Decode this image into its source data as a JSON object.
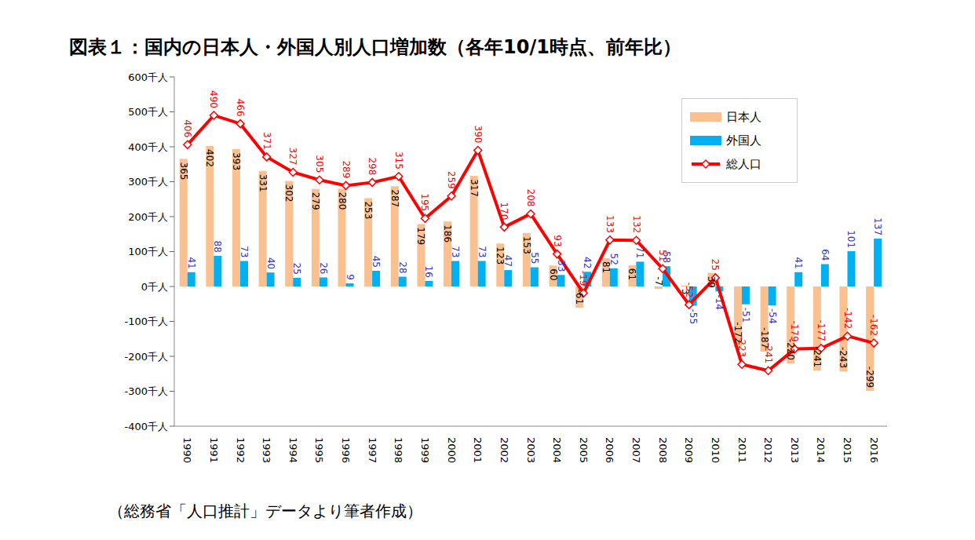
{
  "chart_data": {
    "type": "bar",
    "title": "図表１：国内の日本人・外国人別人口増加数（各年10/1時点、前年比）",
    "source": "（総務省「人口推計」データより筆者作成）",
    "categories": [
      "1990",
      "1991",
      "1992",
      "1993",
      "1994",
      "1995",
      "1996",
      "1997",
      "1998",
      "1999",
      "2000",
      "2001",
      "2002",
      "2003",
      "2004",
      "2005",
      "2006",
      "2007",
      "2008",
      "2009",
      "2010",
      "2011",
      "2012",
      "2013",
      "2014",
      "2015",
      "2016"
    ],
    "series": [
      {
        "name": "日本人",
        "color": "#fac090",
        "values": [
          365,
          402,
          393,
          331,
          302,
          279,
          280,
          253,
          287,
          179,
          186,
          317,
          123,
          153,
          60,
          -61,
          81,
          61,
          -7,
          3,
          39,
          -172,
          -187,
          -220,
          -241,
          -243,
          -299
        ]
      },
      {
        "name": "外国人",
        "color": "#00b0f0",
        "values": [
          41,
          88,
          73,
          40,
          25,
          26,
          9,
          45,
          28,
          16,
          73,
          73,
          47,
          55,
          33,
          42,
          52,
          71,
          58,
          -55,
          -14,
          -51,
          -54,
          41,
          64,
          101,
          137
        ]
      },
      {
        "name": "総人口",
        "type": "line",
        "color": "#ff0000",
        "marker": "diamond",
        "values": [
          406,
          490,
          466,
          371,
          327,
          305,
          289,
          298,
          315,
          195,
          259,
          390,
          170,
          208,
          93,
          -19,
          133,
          132,
          51,
          -52,
          25,
          -223,
          -241,
          -179,
          -177,
          -142,
          -162
        ]
      }
    ],
    "ylim": [
      -400,
      600
    ],
    "yticks": [
      {
        "value": -400,
        "label": "-400千人"
      },
      {
        "value": -300,
        "label": "-300千人"
      },
      {
        "value": -200,
        "label": "-200千人"
      },
      {
        "value": -100,
        "label": "-100千人"
      },
      {
        "value": 0,
        "label": "0千人"
      },
      {
        "value": 100,
        "label": "100千人"
      },
      {
        "value": 200,
        "label": "200千人"
      },
      {
        "value": 300,
        "label": "300千人"
      },
      {
        "value": 400,
        "label": "400千人"
      },
      {
        "value": 500,
        "label": "500千人"
      },
      {
        "value": 600,
        "label": "600千人"
      }
    ],
    "grid": false,
    "legend": "upper right",
    "data_labels": true
  }
}
